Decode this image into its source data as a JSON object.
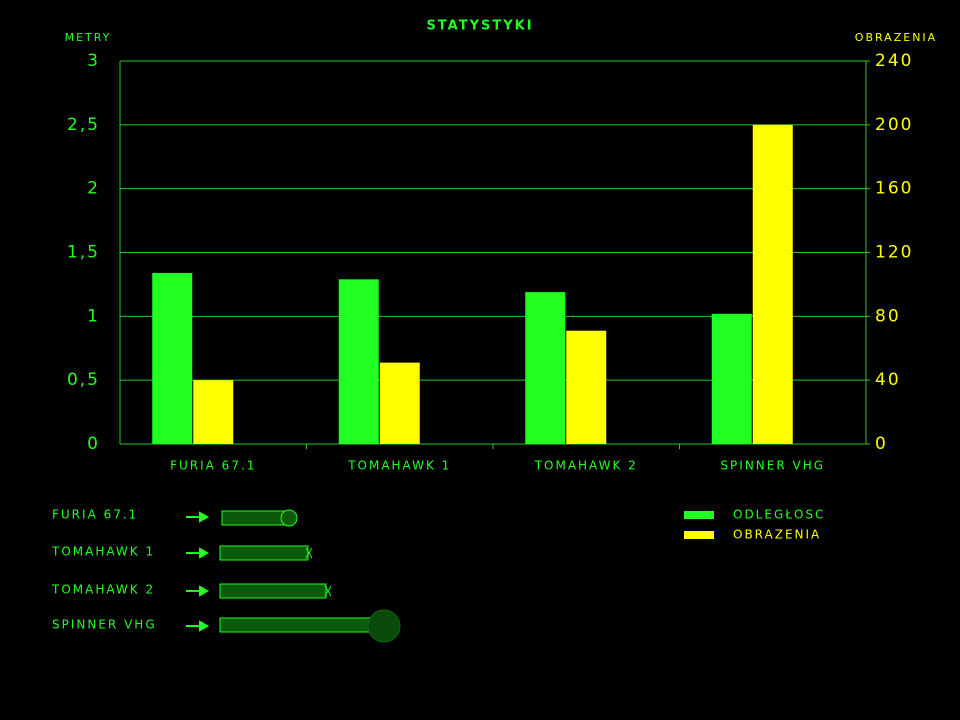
{
  "chart_data": {
    "type": "bar",
    "title": "STATYSTYKI",
    "y_label": "METRY",
    "y2_label": "OBRAZENIA",
    "categories": [
      "FURIA 67.1",
      "TOMAHAWK 1",
      "TOMAHAWK 2",
      "SPINNER VHG"
    ],
    "series": [
      {
        "name": "ODLEGŁOSC",
        "color": "#22ff22",
        "values": [
          1.34,
          1.29,
          1.19,
          1.02
        ]
      },
      {
        "name": "OBRAZENIA",
        "color": "#ffff00",
        "axis": "y2",
        "values": [
          40,
          51,
          71,
          200
        ]
      }
    ],
    "ylim": [
      0,
      3
    ],
    "yticks": [
      0,
      {
        "value": 0.5,
        "label": "0,5"
      },
      1,
      {
        "value": 1.5,
        "label": "1,5"
      },
      2,
      {
        "value": 2.5,
        "label": "2,5"
      },
      3
    ],
    "y2lim": [
      0,
      240
    ],
    "y2ticks": [
      0,
      40,
      80,
      120,
      160,
      200,
      240
    ],
    "grid": true,
    "legend": "right"
  },
  "weapon_list": [
    "FURIA 67.1",
    "TOMAHAWK 1",
    "TOMAHAWK 2",
    "SPINNER VHG"
  ]
}
